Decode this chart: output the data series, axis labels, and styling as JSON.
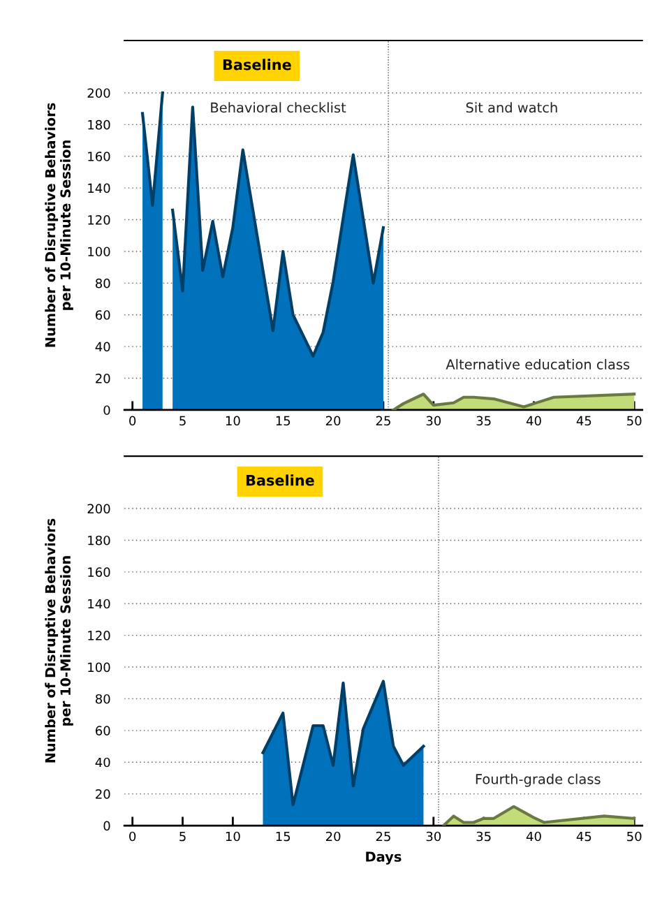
{
  "chart_data": [
    {
      "type": "area",
      "ylabel": "Number of Disruptive Behaviors\nper 10-Minute Session",
      "annotations": [
        "Baseline",
        "Behavioral checklist",
        "Sit and watch",
        "Alternative education class"
      ],
      "series": [
        {
          "color": "#0072bb",
          "x": [
            1,
            2,
            3,
            3.5,
            4,
            5,
            6,
            7,
            8,
            9,
            10,
            11,
            14,
            15,
            16,
            18,
            19,
            20,
            22,
            24,
            25
          ],
          "values": [
            187,
            129,
            200,
            null,
            126,
            75,
            191,
            88,
            119,
            84,
            115,
            164,
            50,
            100,
            60,
            34,
            49,
            81,
            161,
            80,
            115
          ]
        },
        {
          "color": "#c1dc78",
          "x": [
            26,
            27,
            29,
            30,
            32,
            33,
            34,
            36,
            39,
            40,
            42,
            50
          ],
          "values": [
            0,
            4,
            10,
            3,
            4.5,
            8,
            8,
            7,
            2,
            4,
            8,
            10
          ]
        }
      ],
      "xlim": [
        -0.8,
        50.8
      ],
      "ylim": [
        0,
        233
      ],
      "xticks": [
        0,
        5,
        10,
        15,
        20,
        25,
        30,
        35,
        40,
        45,
        50
      ],
      "yticks": [
        0,
        20,
        40,
        60,
        80,
        100,
        120,
        140,
        160,
        180,
        200
      ],
      "ref_lines": [
        {
          "axis": "x",
          "value": 25.5,
          "line_style": "dotted",
          "color": "#555555"
        }
      ],
      "grid": "y",
      "legend": false
    },
    {
      "type": "area",
      "xlabel": "Days",
      "ylabel": "Number of Disruptive Behaviors\nper 10-Minute Session",
      "annotations": [
        "Baseline",
        "Fourth-grade class"
      ],
      "series": [
        {
          "color": "#0072bb",
          "x": [
            13,
            15,
            16,
            18,
            19,
            20,
            21,
            22,
            23,
            25,
            26,
            27,
            29
          ],
          "values": [
            46,
            71,
            13,
            63,
            63,
            38,
            90,
            25,
            61,
            91,
            50,
            38,
            50
          ]
        },
        {
          "color": "#c1dc78",
          "x": [
            31,
            32,
            33,
            34,
            35,
            36,
            38,
            40,
            41,
            47,
            50
          ],
          "values": [
            0,
            6,
            2,
            2,
            4.5,
            4.5,
            12,
            5,
            2,
            6,
            4.5
          ]
        }
      ],
      "xlim": [
        -0.8,
        50.8
      ],
      "ylim": [
        0,
        233
      ],
      "xticks": [
        0,
        5,
        10,
        15,
        20,
        25,
        30,
        35,
        40,
        45,
        50
      ],
      "yticks": [
        0,
        20,
        40,
        60,
        80,
        100,
        120,
        140,
        160,
        180,
        200
      ],
      "ref_lines": [
        {
          "axis": "x",
          "value": 30.5,
          "line_style": "dotted",
          "color": "#555555"
        }
      ],
      "grid": "y",
      "legend": false
    }
  ]
}
